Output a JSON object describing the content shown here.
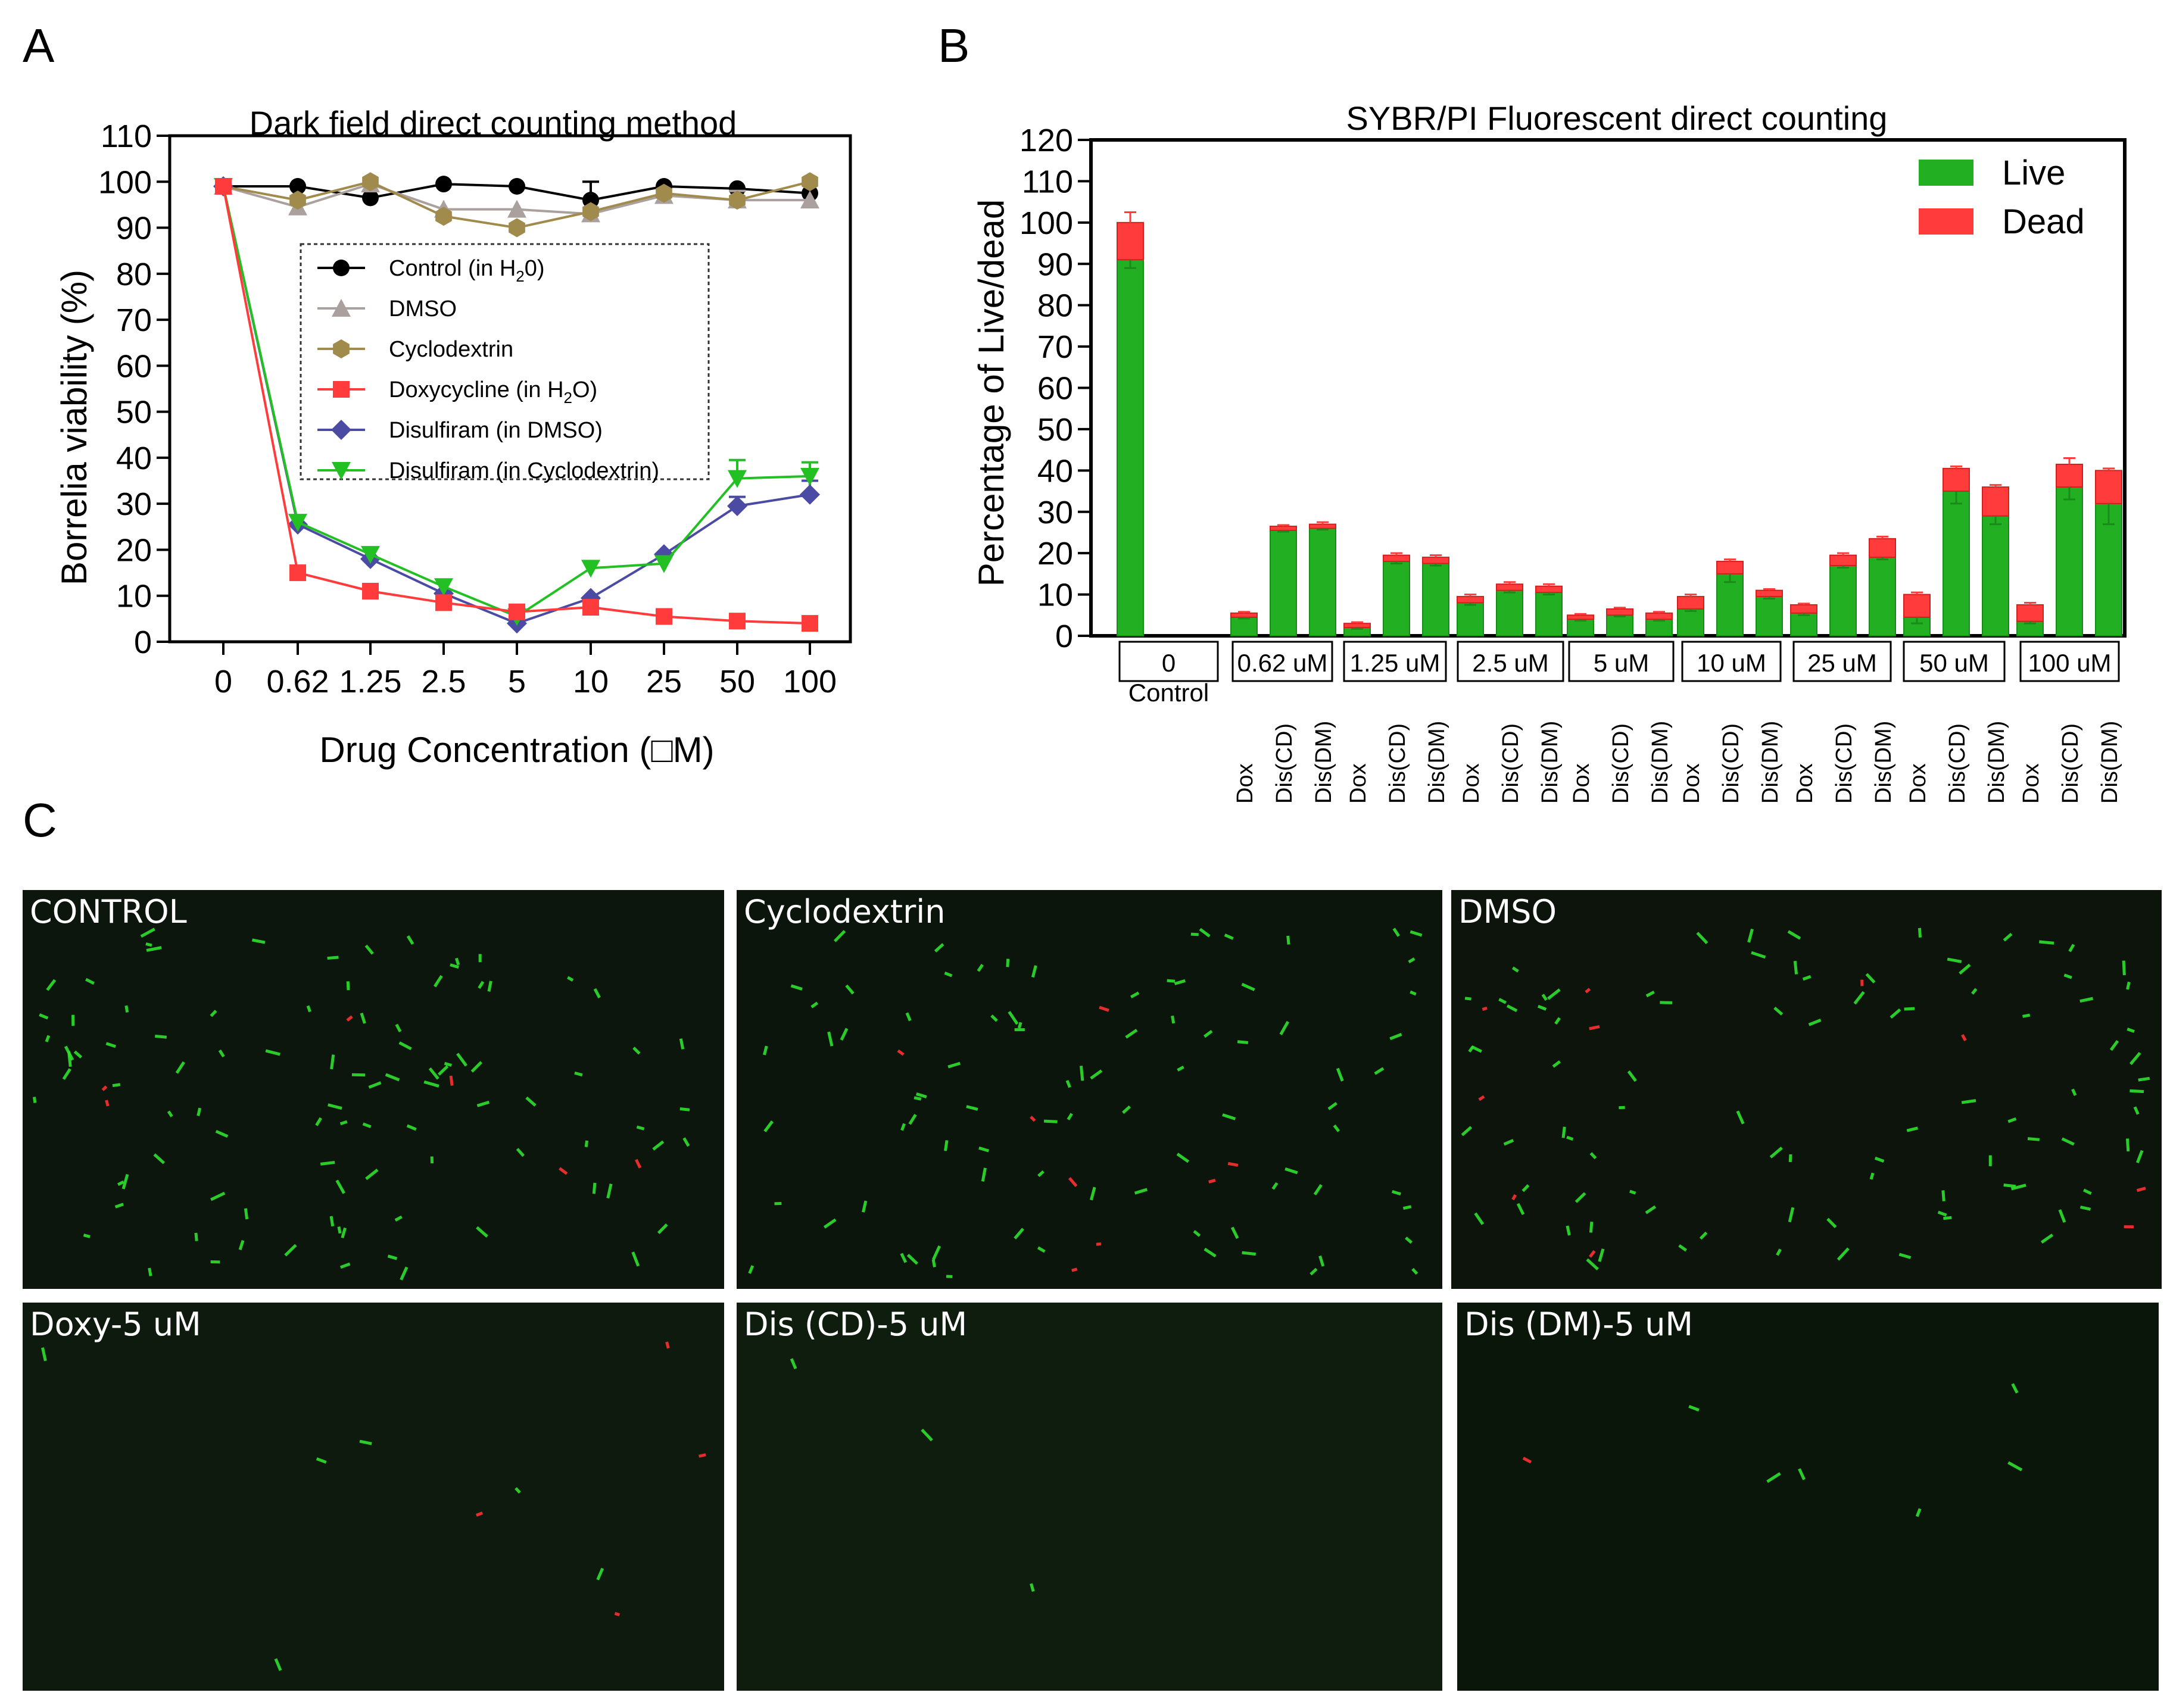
{
  "panels": {
    "a_letter": "A",
    "b_letter": "B",
    "c_letter": "C"
  },
  "chart_data": [
    {
      "type": "line",
      "title": "Dark field direct counting method",
      "xlabel": "Drug Concentration (□M)",
      "ylabel": "Borrelia viability (%)",
      "x": [
        "0",
        "0.62",
        "1.25",
        "2.5",
        "5",
        "10",
        "25",
        "50",
        "100"
      ],
      "ylim": [
        0,
        110
      ],
      "yticks": [
        0,
        10,
        20,
        30,
        40,
        50,
        60,
        70,
        80,
        90,
        100,
        110
      ],
      "legend_placement": "center",
      "series": [
        {
          "name": "Control (in H2O)",
          "name_main": "Control (in H",
          "name_sub": "2",
          "name_tail": "0)",
          "color": "#000000",
          "marker": "circle",
          "values": [
            99,
            99,
            96.5,
            99.5,
            99,
            96,
            99,
            98.5,
            97.5
          ],
          "errors": [
            1,
            0.5,
            0.5,
            0.5,
            0.5,
            4,
            1,
            1,
            1
          ]
        },
        {
          "name": "DMSO",
          "color": "#aaa09e",
          "marker": "triangle-up",
          "values": [
            99,
            94.5,
            99.5,
            94,
            94,
            93,
            97,
            96,
            96
          ],
          "errors": [
            0.5,
            0.5,
            0.5,
            0.5,
            0.5,
            0.5,
            0.5,
            2,
            0.5
          ]
        },
        {
          "name": "Cyclodextrin",
          "color": "#a08a4c",
          "marker": "hexagon",
          "values": [
            99,
            96,
            100,
            92.5,
            90,
            93.5,
            97.5,
            96,
            100
          ],
          "errors": [
            0.5,
            0.5,
            0.5,
            0.5,
            0.5,
            0.5,
            0.5,
            0.5,
            0.5
          ]
        },
        {
          "name": "Doxycycline (in H2O)",
          "name_main": "Doxycycline (in H",
          "name_sub": "2",
          "name_tail": "O)",
          "color": "#ff3b3b",
          "marker": "square",
          "values": [
            99,
            15,
            11,
            8.5,
            6.5,
            7.5,
            5.5,
            4.5,
            4
          ],
          "errors": [
            0.5,
            0.5,
            0.5,
            0.5,
            0.5,
            0.5,
            0.5,
            0.5,
            0.5
          ]
        },
        {
          "name": "Disulfiram (in DMSO)",
          "color": "#4b4ba3",
          "marker": "diamond",
          "values": [
            99,
            25.5,
            18,
            10.5,
            4,
            9.5,
            19,
            29.5,
            32
          ],
          "errors": [
            0.5,
            0.5,
            0.5,
            0.5,
            0.5,
            0.5,
            0.5,
            2,
            3
          ]
        },
        {
          "name": "Disulfiram (in Cyclodextrin)",
          "color": "#22c022",
          "marker": "triangle-down",
          "values": [
            99,
            26,
            19,
            12,
            5.5,
            16,
            17,
            35.5,
            36
          ],
          "errors": [
            0.5,
            0.5,
            0.5,
            0.5,
            0.5,
            0.5,
            0.5,
            4,
            3
          ]
        }
      ]
    },
    {
      "type": "bar",
      "stacked": true,
      "title": "SYBR/PI Fluorescent direct counting",
      "ylabel": "Percentage of Live/dead",
      "ylim": [
        0,
        120
      ],
      "yticks": [
        0,
        10,
        20,
        30,
        40,
        50,
        60,
        70,
        80,
        90,
        100,
        110,
        120
      ],
      "legend_placement": "top-right",
      "legend": [
        {
          "name": "Live",
          "color": "#22b022"
        },
        {
          "name": "Dead",
          "color": "#ff3b3b"
        }
      ],
      "groups": [
        {
          "label": "0",
          "sublabel": "Control",
          "bars": [
            {
              "cat": "",
              "live": 91,
              "dead": 9,
              "live_err": 2,
              "dead_err": 2.5
            }
          ]
        },
        {
          "label": "0.62 uM",
          "bars": [
            {
              "cat": "Dox",
              "live": 4.5,
              "dead": 1,
              "live_err": 0.3,
              "dead_err": 0.3
            },
            {
              "cat": "Dis(CD)",
              "live": 25.5,
              "dead": 1,
              "live_err": 0.3,
              "dead_err": 0.3
            },
            {
              "cat": "Dis(DM)",
              "live": 26,
              "dead": 1,
              "live_err": 0.3,
              "dead_err": 0.5
            }
          ]
        },
        {
          "label": "1.25 uM",
          "bars": [
            {
              "cat": "Dox",
              "live": 2,
              "dead": 1,
              "live_err": 0.3,
              "dead_err": 0.3
            },
            {
              "cat": "Dis(CD)",
              "live": 18,
              "dead": 1.5,
              "live_err": 0.5,
              "dead_err": 0.5
            },
            {
              "cat": "Dis(DM)",
              "live": 17.5,
              "dead": 1.5,
              "live_err": 0.5,
              "dead_err": 0.5
            }
          ]
        },
        {
          "label": "2.5 uM",
          "bars": [
            {
              "cat": "Dox",
              "live": 8,
              "dead": 1.5,
              "live_err": 0.5,
              "dead_err": 0.5
            },
            {
              "cat": "Dis(CD)",
              "live": 11,
              "dead": 1.5,
              "live_err": 0.5,
              "dead_err": 0.5
            },
            {
              "cat": "Dis(DM)",
              "live": 10.5,
              "dead": 1.5,
              "live_err": 0.5,
              "dead_err": 0.5
            }
          ]
        },
        {
          "label": "5 uM",
          "bars": [
            {
              "cat": "Dox",
              "live": 4,
              "dead": 1,
              "live_err": 0.3,
              "dead_err": 0.3
            },
            {
              "cat": "Dis(CD)",
              "live": 5,
              "dead": 1.5,
              "live_err": 0.3,
              "dead_err": 0.3
            },
            {
              "cat": "Dis(DM)",
              "live": 4,
              "dead": 1.5,
              "live_err": 0.3,
              "dead_err": 0.3
            }
          ]
        },
        {
          "label": "10 uM",
          "bars": [
            {
              "cat": "Dox",
              "live": 6.5,
              "dead": 3,
              "live_err": 0.5,
              "dead_err": 0.5
            },
            {
              "cat": "Dis(CD)",
              "live": 15,
              "dead": 3,
              "live_err": 2,
              "dead_err": 0.5
            },
            {
              "cat": "Dis(DM)",
              "live": 9.5,
              "dead": 1.5,
              "live_err": 0.5,
              "dead_err": 0.3
            }
          ]
        },
        {
          "label": "25 uM",
          "bars": [
            {
              "cat": "Dox",
              "live": 5.5,
              "dead": 2,
              "live_err": 0.5,
              "dead_err": 0.3
            },
            {
              "cat": "Dis(CD)",
              "live": 17,
              "dead": 2.5,
              "live_err": 0.5,
              "dead_err": 0.5
            },
            {
              "cat": "Dis(DM)",
              "live": 19,
              "dead": 4.5,
              "live_err": 0.5,
              "dead_err": 0.5
            }
          ]
        },
        {
          "label": "50 uM",
          "bars": [
            {
              "cat": "Dox",
              "live": 4.5,
              "dead": 5.5,
              "live_err": 1.5,
              "dead_err": 0.5
            },
            {
              "cat": "Dis(CD)",
              "live": 35,
              "dead": 5.5,
              "live_err": 3,
              "dead_err": 0.5
            },
            {
              "cat": "Dis(DM)",
              "live": 29,
              "dead": 7,
              "live_err": 2,
              "dead_err": 0.5
            }
          ]
        },
        {
          "label": "100 uM",
          "bars": [
            {
              "cat": "Dox",
              "live": 3.5,
              "dead": 4,
              "live_err": 0.5,
              "dead_err": 0.5
            },
            {
              "cat": "Dis(CD)",
              "live": 36,
              "dead": 5.5,
              "live_err": 3,
              "dead_err": 1.5
            },
            {
              "cat": "Dis(DM)",
              "live": 32,
              "dead": 8,
              "live_err": 5,
              "dead_err": 0.5
            }
          ]
        }
      ]
    }
  ],
  "micrographs": [
    {
      "label": "CONTROL",
      "green": 95,
      "red": 6,
      "bg": "#0c160c"
    },
    {
      "label": "Cyclodextrin",
      "green": 85,
      "red": 8,
      "bg": "#0b150b"
    },
    {
      "label": "DMSO",
      "green": 90,
      "red": 10,
      "bg": "#0c140c"
    },
    {
      "label": "Doxy-5 uM",
      "green": 6,
      "red": 4,
      "bg": "#0d1a0d"
    },
    {
      "label": "Dis (CD)-5 uM",
      "green": 3,
      "red": 0,
      "bg": "#0f1d0f"
    },
    {
      "label": "Dis (DM)-5 uM",
      "green": 6,
      "red": 1,
      "bg": "#0b160b"
    }
  ]
}
